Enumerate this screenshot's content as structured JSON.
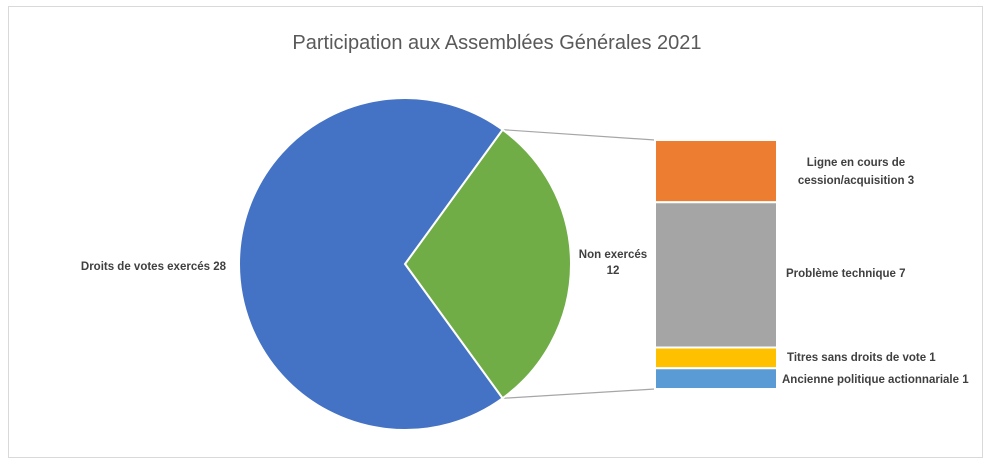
{
  "chart_data": {
    "type": "pie",
    "subtype": "bar-of-pie",
    "title": "Participation aux Assemblées Générales 2021",
    "pie": {
      "slices": [
        {
          "name": "Droits de votes exercés",
          "value": 28,
          "label": "Droits de votes exercés 28",
          "color": "#4472c4"
        },
        {
          "name": "Non exercés",
          "value": 12,
          "label_line1": "Non exercés",
          "label_line2": "12",
          "color": "#70ad47"
        }
      ]
    },
    "bar": {
      "segments": [
        {
          "name": "Ligne en cours de cession/acquisition",
          "value": 3,
          "label_line1": "Ligne en cours de",
          "label_line2": "cession/acquisition  3",
          "color": "#ed7d31"
        },
        {
          "name": "Problème technique",
          "value": 7,
          "label": "Problème technique 7",
          "color": "#a5a5a5"
        },
        {
          "name": "Titres sans droits de vote",
          "value": 1,
          "label": "Titres sans droits de vote  1",
          "color": "#ffc000"
        },
        {
          "name": "Ancienne politique actionnariale",
          "value": 1,
          "label": "Ancienne politique actionnariale 1",
          "color": "#5b9bd5"
        }
      ]
    },
    "legend": "none"
  }
}
